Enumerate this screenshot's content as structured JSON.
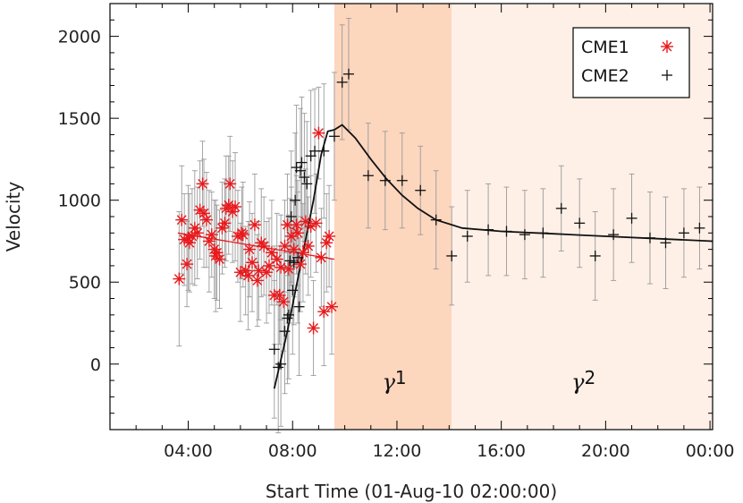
{
  "chart_data": {
    "type": "scatter",
    "xlabel": "Start Time (01-Aug-10 02:00:00)",
    "ylabel": "Velocity",
    "xlim_hours": [
      1.0,
      24.1
    ],
    "ylim": [
      -400,
      2200
    ],
    "x_ticks": [
      {
        "hour": 4,
        "label": "04:00"
      },
      {
        "hour": 8,
        "label": "08:00"
      },
      {
        "hour": 12,
        "label": "12:00"
      },
      {
        "hour": 16,
        "label": "16:00"
      },
      {
        "hour": 20,
        "label": "20:00"
      },
      {
        "hour": 24,
        "label": "00:00"
      }
    ],
    "y_ticks": [
      0,
      500,
      1000,
      1500,
      2000
    ],
    "regions": [
      {
        "name": "γ1",
        "label_base": "γ",
        "label_sup": "1",
        "x_start": 9.6,
        "x_end": 14.1,
        "color": "#fdd6be"
      },
      {
        "name": "γ2",
        "label_base": "γ",
        "label_sup": "2",
        "x_start": 14.1,
        "x_end": 24.1,
        "color": "#fef0e7"
      }
    ],
    "legend": {
      "position": "top-right",
      "entries": [
        {
          "label": "CME1",
          "marker": "asterisk",
          "color": "#e8191c"
        },
        {
          "label": "CME2",
          "marker": "plus",
          "color": "#111111"
        }
      ]
    },
    "series": [
      {
        "name": "CME1",
        "marker": "asterisk",
        "color": "#e8191c",
        "points": [
          [
            3.65,
            520,
            410
          ],
          [
            3.75,
            880,
            330
          ],
          [
            3.85,
            760,
            280
          ],
          [
            3.95,
            610,
            260
          ],
          [
            4.0,
            770,
            320
          ],
          [
            4.05,
            740,
            300
          ],
          [
            4.15,
            780,
            290
          ],
          [
            4.25,
            830,
            350
          ],
          [
            4.35,
            800,
            280
          ],
          [
            4.45,
            940,
            300
          ],
          [
            4.55,
            1100,
            260
          ],
          [
            4.6,
            920,
            330
          ],
          [
            4.7,
            880,
            290
          ],
          [
            4.8,
            750,
            310
          ],
          [
            4.9,
            790,
            260
          ],
          [
            5.0,
            700,
            300
          ],
          [
            5.05,
            660,
            340
          ],
          [
            5.1,
            680,
            290
          ],
          [
            5.2,
            640,
            300
          ],
          [
            5.3,
            830,
            280
          ],
          [
            5.4,
            860,
            270
          ],
          [
            5.45,
            950,
            320
          ],
          [
            5.55,
            970,
            300
          ],
          [
            5.6,
            1100,
            290
          ],
          [
            5.7,
            930,
            310
          ],
          [
            5.8,
            960,
            330
          ],
          [
            5.9,
            780,
            280
          ],
          [
            6.0,
            560,
            300
          ],
          [
            6.05,
            800,
            280
          ],
          [
            6.1,
            790,
            320
          ],
          [
            6.2,
            570,
            270
          ],
          [
            6.3,
            540,
            330
          ],
          [
            6.35,
            700,
            290
          ],
          [
            6.45,
            620,
            300
          ],
          [
            6.55,
            850,
            310
          ],
          [
            6.65,
            510,
            280
          ],
          [
            6.7,
            570,
            300
          ],
          [
            6.8,
            740,
            330
          ],
          [
            6.9,
            720,
            300
          ],
          [
            7.0,
            560,
            310
          ],
          [
            7.1,
            600,
            290
          ],
          [
            7.2,
            680,
            320
          ],
          [
            7.3,
            420,
            300
          ],
          [
            7.4,
            640,
            280
          ],
          [
            7.5,
            420,
            300
          ],
          [
            7.55,
            590,
            320
          ],
          [
            7.65,
            380,
            300
          ],
          [
            7.7,
            720,
            280
          ],
          [
            7.8,
            850,
            310
          ],
          [
            7.85,
            580,
            330
          ],
          [
            7.95,
            780,
            300
          ],
          [
            8.05,
            700,
            290
          ],
          [
            8.15,
            850,
            300
          ],
          [
            8.2,
            800,
            320
          ],
          [
            8.3,
            610,
            290
          ],
          [
            8.4,
            680,
            300
          ],
          [
            8.5,
            870,
            320
          ],
          [
            8.6,
            720,
            300
          ],
          [
            8.7,
            840,
            310
          ],
          [
            8.8,
            220,
            290
          ],
          [
            8.9,
            860,
            300
          ],
          [
            9.0,
            1410,
            280
          ],
          [
            9.1,
            650,
            300
          ],
          [
            9.2,
            320,
            330
          ],
          [
            9.3,
            740,
            300
          ],
          [
            9.4,
            780,
            310
          ],
          [
            9.5,
            350,
            290
          ]
        ]
      },
      {
        "name": "CME2",
        "marker": "plus",
        "color": "#111111",
        "points": [
          [
            7.3,
            90,
            420
          ],
          [
            7.45,
            -20,
            400
          ],
          [
            7.55,
            0,
            380
          ],
          [
            7.7,
            200,
            380
          ],
          [
            7.8,
            280,
            400
          ],
          [
            7.85,
            300,
            390
          ],
          [
            7.9,
            630,
            380
          ],
          [
            7.95,
            900,
            400
          ],
          [
            8.0,
            450,
            390
          ],
          [
            8.05,
            620,
            380
          ],
          [
            8.1,
            1000,
            410
          ],
          [
            8.15,
            1200,
            380
          ],
          [
            8.2,
            650,
            400
          ],
          [
            8.25,
            350,
            420
          ],
          [
            8.3,
            1180,
            380
          ],
          [
            8.35,
            1230,
            400
          ],
          [
            8.45,
            1140,
            390
          ],
          [
            8.55,
            1100,
            380
          ],
          [
            8.7,
            1270,
            400
          ],
          [
            8.85,
            1300,
            380
          ],
          [
            9.2,
            1300,
            410
          ],
          [
            9.6,
            1390,
            390
          ],
          [
            9.9,
            1720,
            350
          ],
          [
            10.15,
            1770,
            340
          ],
          [
            10.9,
            1150,
            320
          ],
          [
            11.55,
            1120,
            300
          ],
          [
            12.2,
            1120,
            290
          ],
          [
            12.9,
            1060,
            270
          ],
          [
            13.5,
            880,
            300
          ],
          [
            14.1,
            660,
            300
          ],
          [
            14.7,
            780,
            280
          ],
          [
            15.5,
            820,
            280
          ],
          [
            16.2,
            810,
            270
          ],
          [
            16.9,
            790,
            270
          ],
          [
            17.6,
            800,
            270
          ],
          [
            18.3,
            950,
            260
          ],
          [
            19.0,
            860,
            270
          ],
          [
            19.6,
            660,
            270
          ],
          [
            20.3,
            790,
            280
          ],
          [
            21.0,
            890,
            270
          ],
          [
            21.7,
            770,
            280
          ],
          [
            22.3,
            740,
            280
          ],
          [
            23.0,
            800,
            270
          ],
          [
            23.6,
            830,
            250
          ]
        ]
      }
    ],
    "fits": [
      {
        "name": "CME1 linear fit",
        "color": "#e8191c",
        "points": [
          [
            3.6,
            800
          ],
          [
            9.6,
            640
          ]
        ]
      },
      {
        "name": "CME2 fit",
        "color": "#111111",
        "points": [
          [
            7.3,
            -150
          ],
          [
            7.8,
            200
          ],
          [
            8.3,
            600
          ],
          [
            8.8,
            1000
          ],
          [
            9.1,
            1280
          ],
          [
            9.35,
            1420
          ],
          [
            9.6,
            1430
          ],
          [
            9.9,
            1460
          ],
          [
            10.4,
            1380
          ],
          [
            11.0,
            1250
          ],
          [
            11.6,
            1130
          ],
          [
            12.2,
            1030
          ],
          [
            12.8,
            950
          ],
          [
            13.5,
            880
          ],
          [
            14.5,
            830
          ],
          [
            16.0,
            810
          ],
          [
            18.0,
            795
          ],
          [
            20.0,
            780
          ],
          [
            22.0,
            765
          ],
          [
            24.1,
            750
          ]
        ]
      }
    ]
  }
}
